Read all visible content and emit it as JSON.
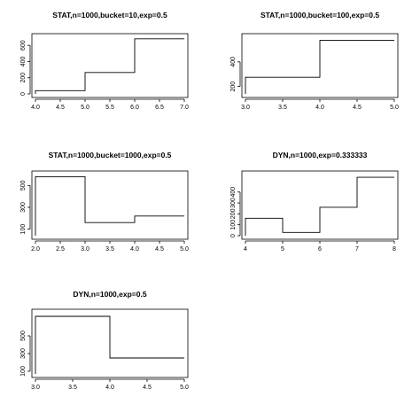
{
  "chart_data": [
    {
      "type": "line",
      "step": true,
      "title": "STAT,n=1000,bucket=10,exp=0.5",
      "xlabel": "",
      "ylabel": "",
      "xlim": [
        4.0,
        7.0
      ],
      "ylim": [
        0,
        700
      ],
      "xticks": [
        4.0,
        4.5,
        5.0,
        5.5,
        6.0,
        6.5,
        7.0
      ],
      "xtick_labels": [
        "4.0",
        "4.5",
        "5.0",
        "5.5",
        "6.0",
        "6.5",
        "7.0"
      ],
      "yticks": [
        0,
        200,
        400,
        600
      ],
      "ytick_labels": [
        "0",
        "200",
        "400",
        "600"
      ],
      "x": [
        4.0,
        5.0,
        6.0,
        7.0
      ],
      "y": [
        40,
        265,
        680,
        680
      ],
      "grid": false
    },
    {
      "type": "line",
      "step": true,
      "title": "STAT,n=1000,bucket=100,exp=0.5",
      "xlabel": "",
      "ylabel": "",
      "xlim": [
        3.0,
        5.0
      ],
      "ylim": [
        140,
        600
      ],
      "xticks": [
        3.0,
        3.5,
        4.0,
        4.5,
        5.0
      ],
      "xtick_labels": [
        "3.0",
        "3.5",
        "4.0",
        "4.5",
        "5.0"
      ],
      "yticks": [
        200,
        400
      ],
      "ytick_labels": [
        "200",
        "400"
      ],
      "x": [
        3.0,
        4.0,
        5.0
      ],
      "y": [
        275,
        575,
        575
      ],
      "grid": false
    },
    {
      "type": "line",
      "step": true,
      "title": "STAT,n=1000,bucket=1000,exp=0.5",
      "xlabel": "",
      "ylabel": "",
      "xlim": [
        2.0,
        5.0
      ],
      "ylim": [
        40,
        600
      ],
      "xticks": [
        2.0,
        2.5,
        3.0,
        3.5,
        4.0,
        4.5,
        5.0
      ],
      "xtick_labels": [
        "2.0",
        "2.5",
        "3.0",
        "3.5",
        "4.0",
        "4.5",
        "5.0"
      ],
      "yticks": [
        100,
        300,
        500
      ],
      "ytick_labels": [
        "100",
        "300",
        "500"
      ],
      "x": [
        2.0,
        3.0,
        4.0,
        5.0
      ],
      "y": [
        580,
        160,
        220,
        220
      ],
      "grid": false
    },
    {
      "type": "line",
      "step": true,
      "title": "DYN,n=1000,exp=0.333333",
      "xlabel": "",
      "ylabel": "",
      "xlim": [
        4.0,
        8.0
      ],
      "ylim": [
        0,
        560
      ],
      "xticks": [
        4,
        5,
        6,
        7,
        8
      ],
      "xtick_labels": [
        "4",
        "5",
        "6",
        "7",
        "8"
      ],
      "yticks": [
        0,
        100,
        200,
        300,
        400
      ],
      "ytick_labels": [
        "0",
        "100",
        "200",
        "300",
        "400"
      ],
      "x": [
        4,
        5,
        6,
        7,
        8
      ],
      "y": [
        160,
        30,
        260,
        535,
        535
      ],
      "grid": false
    },
    {
      "type": "line",
      "step": true,
      "title": "DYN,n=1000,exp=0.5",
      "xlabel": "",
      "ylabel": "",
      "xlim": [
        3.0,
        5.0
      ],
      "ylim": [
        70,
        760
      ],
      "xticks": [
        3.0,
        3.5,
        4.0,
        4.5,
        5.0
      ],
      "xtick_labels": [
        "3.0",
        "3.5",
        "4.0",
        "4.5",
        "5.0"
      ],
      "yticks": [
        100,
        300,
        500
      ],
      "ytick_labels": [
        "100",
        "300",
        "500"
      ],
      "x": [
        3.0,
        4.0,
        5.0
      ],
      "y": [
        720,
        250,
        250
      ],
      "grid": false
    }
  ]
}
